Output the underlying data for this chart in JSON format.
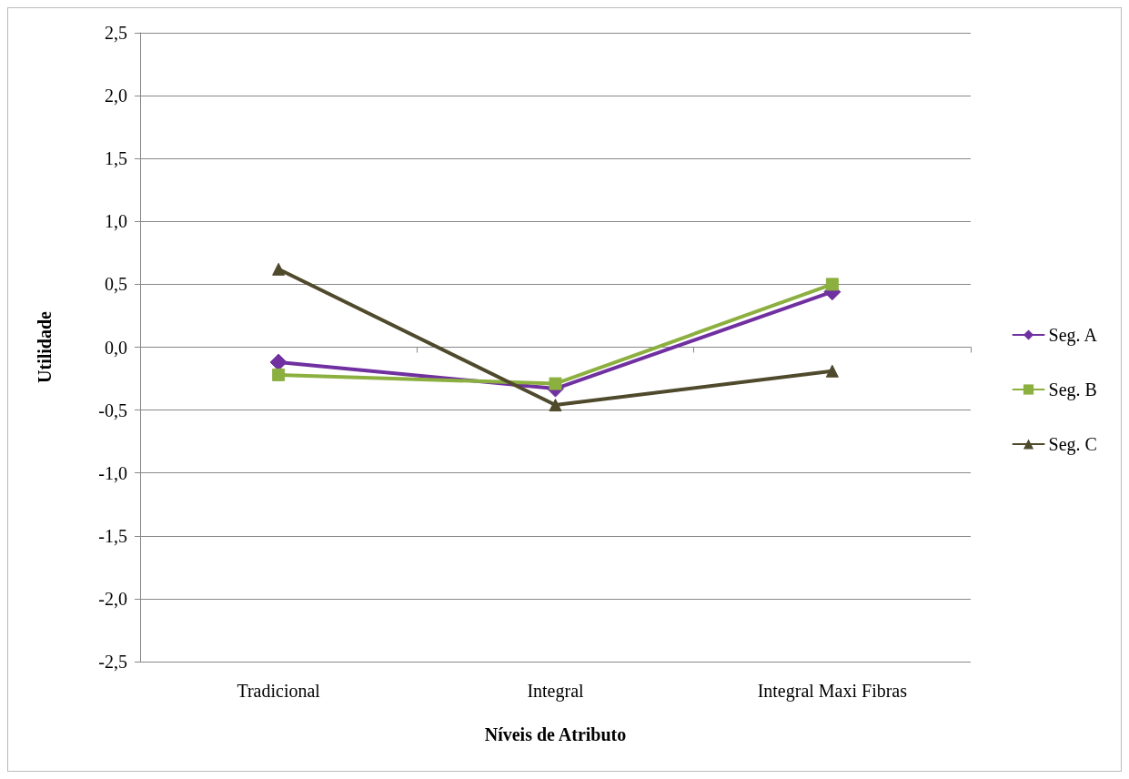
{
  "chart_data": {
    "type": "line",
    "xlabel": "Níveis de Atributo",
    "ylabel": "Utilidade",
    "categories": [
      "Tradicional",
      "Integral",
      "Integral Maxi Fibras"
    ],
    "series": [
      {
        "name": "Seg. A",
        "color": "#7030a0",
        "marker": "diamond",
        "values": [
          -0.12,
          -0.33,
          0.44
        ]
      },
      {
        "name": "Seg. B",
        "color": "#8cb040",
        "marker": "square",
        "values": [
          -0.22,
          -0.29,
          0.5
        ]
      },
      {
        "name": "Seg. C",
        "color": "#4f4a2c",
        "marker": "triangle",
        "values": [
          0.62,
          -0.46,
          -0.19
        ]
      }
    ],
    "ylim": [
      -2.5,
      2.5
    ],
    "yticks": [
      {
        "value": -2.5,
        "label": "-2,5"
      },
      {
        "value": -2,
        "label": "-2,0"
      },
      {
        "value": -1.5,
        "label": "-1,5"
      },
      {
        "value": -1,
        "label": "-1,0"
      },
      {
        "value": -0.5,
        "label": "-0,5"
      },
      {
        "value": 0,
        "label": "0,0"
      },
      {
        "value": 0.5,
        "label": "0,5"
      },
      {
        "value": 1,
        "label": "1,0"
      },
      {
        "value": 1.5,
        "label": "1,5"
      },
      {
        "value": 2,
        "label": "2,0"
      },
      {
        "value": 2.5,
        "label": "2,5"
      }
    ],
    "grid": "y",
    "legend": "right",
    "line_style": "solid"
  }
}
